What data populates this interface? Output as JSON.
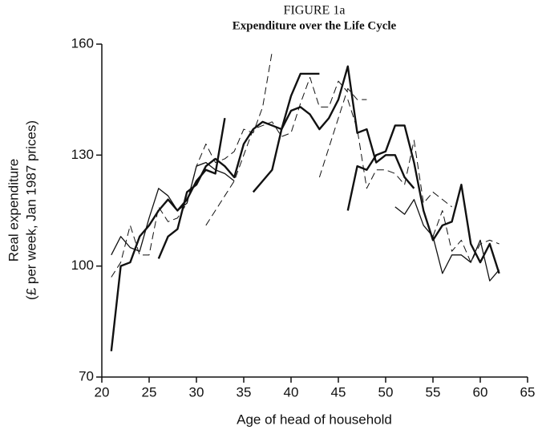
{
  "chart_data": {
    "type": "line",
    "title": "FIGURE 1a",
    "subtitle": "Expenditure over the Life Cycle",
    "y_label": [
      "Real expenditure",
      "(£ per week, Jan 1987 prices)"
    ],
    "x_label": "Age of head of household",
    "xlim": [
      20,
      65
    ],
    "xticks": [
      20,
      25,
      30,
      35,
      40,
      45,
      50,
      55,
      60,
      65
    ],
    "ylim": [
      70,
      160
    ],
    "yticks": [
      70,
      100,
      130,
      160
    ],
    "series": [
      {
        "color": "#111",
        "style": "heavy",
        "x": [
          21,
          22,
          23,
          24,
          25,
          26,
          27,
          28,
          29,
          30,
          31,
          32,
          33
        ],
        "values": [
          77,
          100,
          101,
          108,
          111,
          115,
          118,
          115,
          118,
          123,
          126,
          125,
          140
        ]
      },
      {
        "color": "#111",
        "style": "light",
        "x": [
          21,
          22,
          23,
          24,
          25,
          26,
          27,
          28,
          29,
          30,
          31,
          32,
          33,
          34
        ],
        "values": [
          103,
          108,
          105,
          104,
          113,
          121,
          119,
          115,
          117,
          127,
          128,
          126,
          125,
          123
        ]
      },
      {
        "color": "#111",
        "style": "dashed",
        "x": [
          21,
          22,
          23,
          24,
          25,
          26,
          27,
          28,
          29,
          30,
          31,
          32,
          33,
          34,
          35,
          36,
          37,
          38
        ],
        "values": [
          97,
          101,
          111,
          103,
          103,
          116,
          112,
          113,
          117,
          127,
          133,
          128,
          129,
          131,
          137,
          136,
          143,
          158
        ]
      },
      {
        "color": "#111",
        "style": "heavy",
        "x": [
          26,
          27,
          28,
          29,
          30,
          31,
          32,
          33,
          34,
          35,
          36,
          37,
          38,
          39,
          40,
          41,
          42,
          43,
          44,
          45,
          46,
          47,
          48,
          49,
          50,
          51,
          52,
          53
        ],
        "values": [
          102,
          108,
          110,
          120,
          122,
          127,
          129,
          127,
          124,
          133,
          137,
          139,
          138,
          137,
          142,
          143,
          141,
          137,
          140,
          145,
          154,
          136,
          137,
          128,
          130,
          130,
          124,
          121
        ]
      },
      {
        "color": "#111",
        "style": "heavy",
        "x": [
          36,
          37,
          38,
          39,
          40,
          41,
          42,
          43
        ],
        "values": [
          120,
          123,
          126,
          137,
          146,
          152,
          152,
          152
        ]
      },
      {
        "color": "#111",
        "style": "dashed",
        "x": [
          31,
          32,
          33,
          34,
          35,
          36,
          37,
          38,
          39,
          40,
          41,
          42,
          43,
          44,
          45,
          46
        ],
        "values": [
          111,
          115,
          119,
          123,
          130,
          137,
          138,
          139,
          135,
          136,
          144,
          151,
          143,
          143,
          150,
          147
        ]
      },
      {
        "color": "#111",
        "style": "dashed",
        "x": [
          43,
          44,
          45,
          46,
          47,
          48
        ],
        "values": [
          124,
          132,
          140,
          148,
          145,
          145
        ]
      },
      {
        "color": "#111",
        "style": "dashed",
        "x": [
          46,
          47,
          48,
          49,
          50,
          51,
          52,
          53,
          54,
          55,
          56,
          57
        ],
        "values": [
          145,
          137,
          121,
          126,
          126,
          125,
          122,
          134,
          117,
          120,
          118,
          116
        ]
      },
      {
        "color": "#111",
        "style": "heavy",
        "x": [
          46,
          47,
          48,
          49,
          50,
          51,
          52,
          53,
          54,
          55,
          56,
          57,
          58,
          59,
          60,
          61,
          62
        ],
        "values": [
          115,
          127,
          126,
          130,
          131,
          138,
          138,
          128,
          115,
          107,
          111,
          112,
          122,
          106,
          101,
          106,
          98
        ]
      },
      {
        "color": "#111",
        "style": "light",
        "x": [
          51,
          52,
          53,
          54,
          55,
          56,
          57,
          58,
          59,
          60,
          61,
          62
        ],
        "values": [
          116,
          114,
          118,
          111,
          108,
          98,
          103,
          103,
          101,
          107,
          96,
          99
        ]
      },
      {
        "color": "#111",
        "style": "dashed",
        "x": [
          55,
          56,
          57,
          58,
          59,
          60,
          61,
          62
        ],
        "values": [
          108,
          115,
          104,
          107,
          101,
          106,
          107,
          106
        ]
      }
    ]
  }
}
